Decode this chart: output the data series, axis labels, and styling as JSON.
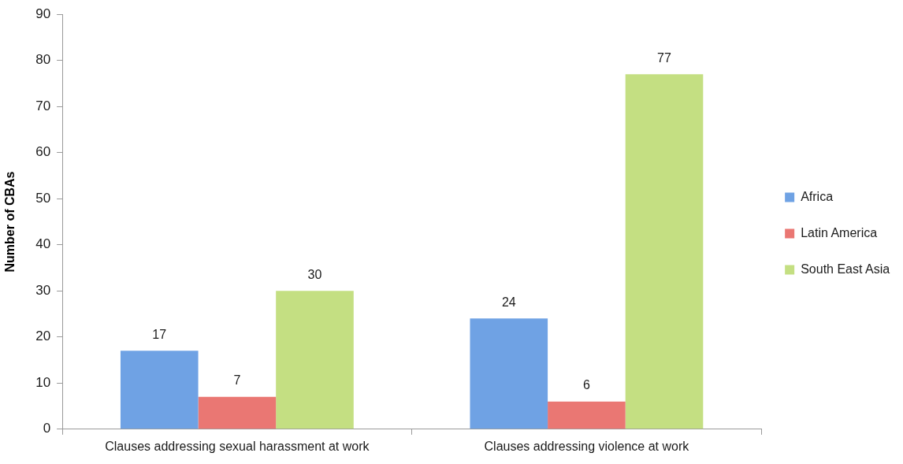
{
  "chart_data": {
    "type": "bar",
    "ylabel": "Number of CBAs",
    "categories": [
      "Clauses addressing sexual harassment at work",
      "Clauses addressing violence at work"
    ],
    "series": [
      {
        "name": "Africa",
        "color": "#6fa2e4",
        "values": [
          17,
          24
        ]
      },
      {
        "name": "Latin America",
        "color": "#ea7773",
        "values": [
          7,
          6
        ]
      },
      {
        "name": "South East Asia",
        "color": "#c4df82",
        "values": [
          30,
          77
        ]
      }
    ],
    "ylim": [
      0,
      90
    ],
    "yticks": [
      0,
      10,
      20,
      30,
      40,
      50,
      60,
      70,
      80,
      90
    ],
    "data_labels": true,
    "legend": "right"
  }
}
